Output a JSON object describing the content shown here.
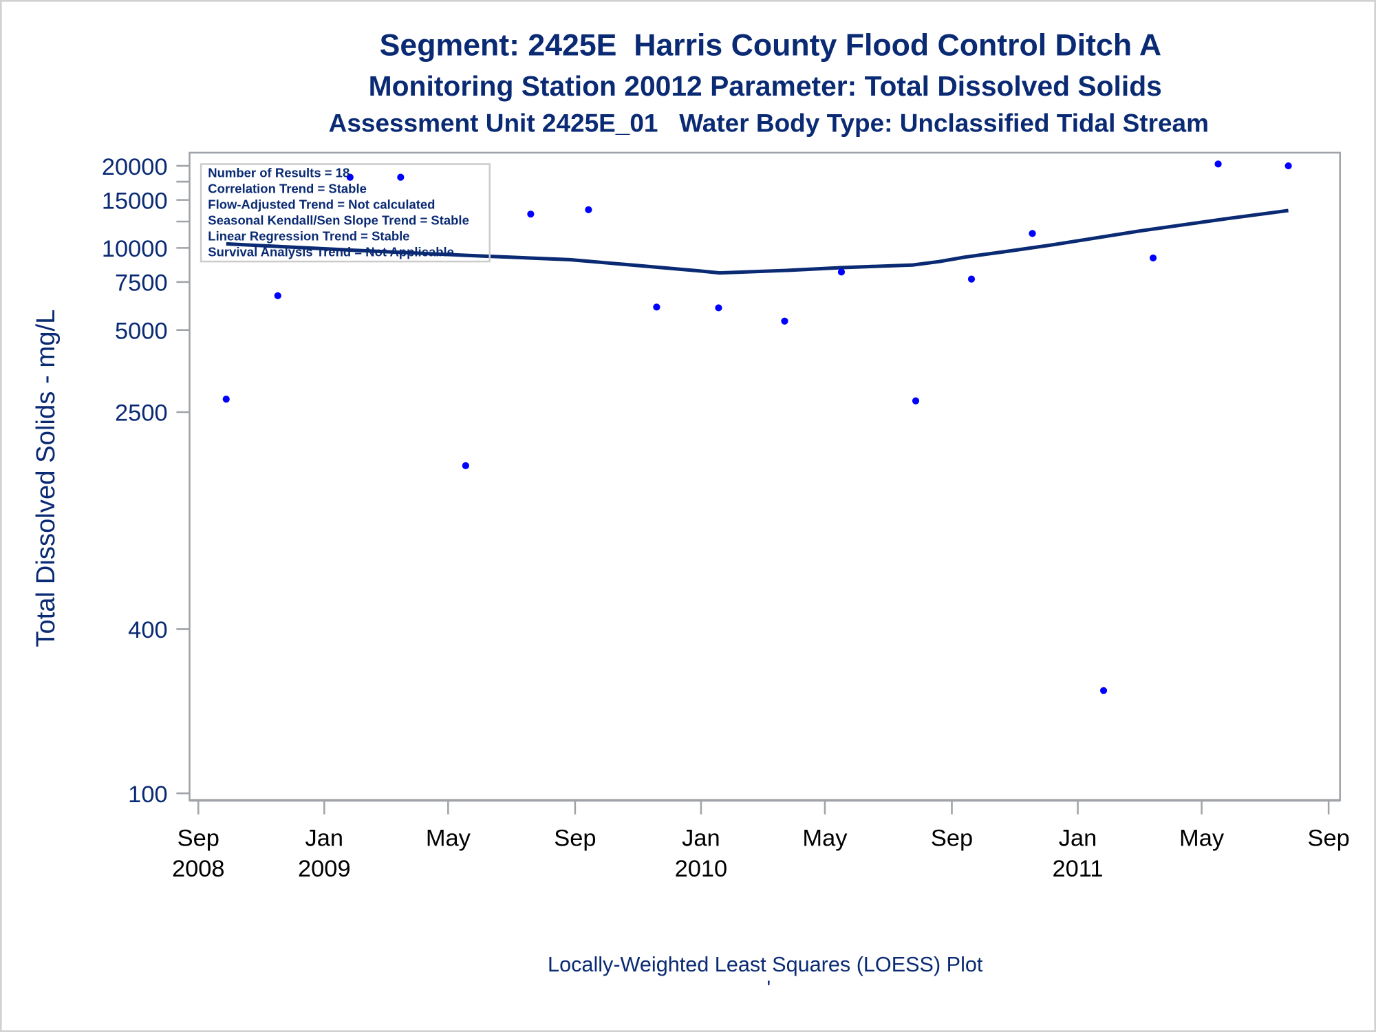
{
  "chart_data": {
    "type": "scatter",
    "title": "Segment: 2425E  Harris County Flood Control Ditch A",
    "subtitle": "Monitoring Station 20012 Parameter: Total Dissolved Solids",
    "subtitle2": "Assessment Unit 2425E_01   Water Body Type: Unclassified Tidal Stream",
    "xlabel": "",
    "ylabel": "Total Dissolved Solids - mg/L",
    "footnote": "Locally-Weighted Least Squares (LOESS) Plot",
    "footnote_mark": "'",
    "yscale": "log",
    "ylim": [
      100,
      20000
    ],
    "xlim": [
      "2008-09-01",
      "2011-09-01"
    ],
    "yticks": [
      {
        "value": 100,
        "label": "100"
      },
      {
        "value": 400,
        "label": "400"
      },
      {
        "value": 2500,
        "label": "2500"
      },
      {
        "value": 5000,
        "label": "5000"
      },
      {
        "value": 7500,
        "label": "7500"
      },
      {
        "value": 10000,
        "label": "10000"
      },
      {
        "value": 12500,
        "label": ""
      },
      {
        "value": 15000,
        "label": "15000"
      },
      {
        "value": 17500,
        "label": ""
      },
      {
        "value": 20000,
        "label": "20000"
      }
    ],
    "xticks": [
      {
        "date": "2008-09-01",
        "label": "Sep",
        "year": "2008"
      },
      {
        "date": "2009-01-01",
        "label": "Jan",
        "year": "2009"
      },
      {
        "date": "2009-05-01",
        "label": "May",
        "year": ""
      },
      {
        "date": "2009-09-01",
        "label": "Sep",
        "year": ""
      },
      {
        "date": "2010-01-01",
        "label": "Jan",
        "year": "2010"
      },
      {
        "date": "2010-05-01",
        "label": "May",
        "year": ""
      },
      {
        "date": "2010-09-01",
        "label": "Sep",
        "year": ""
      },
      {
        "date": "2011-01-01",
        "label": "Jan",
        "year": "2011"
      },
      {
        "date": "2011-05-01",
        "label": "May",
        "year": ""
      },
      {
        "date": "2011-09-01",
        "label": "Sep",
        "year": ""
      }
    ],
    "series": [
      {
        "name": "Observations",
        "kind": "scatter",
        "color": "#0000ff",
        "points": [
          {
            "date": "2008-09-28",
            "value": 2790
          },
          {
            "date": "2008-11-17",
            "value": 6680
          },
          {
            "date": "2009-01-26",
            "value": 18170
          },
          {
            "date": "2009-03-16",
            "value": 18170
          },
          {
            "date": "2009-05-18",
            "value": 1590
          },
          {
            "date": "2009-07-20",
            "value": 13310
          },
          {
            "date": "2009-09-14",
            "value": 13810
          },
          {
            "date": "2009-11-19",
            "value": 6070
          },
          {
            "date": "2010-01-18",
            "value": 6030
          },
          {
            "date": "2010-03-23",
            "value": 5390
          },
          {
            "date": "2010-05-17",
            "value": 8160
          },
          {
            "date": "2010-07-28",
            "value": 2750
          },
          {
            "date": "2010-09-20",
            "value": 7690
          },
          {
            "date": "2010-11-18",
            "value": 11300
          },
          {
            "date": "2011-01-26",
            "value": 238
          },
          {
            "date": "2011-03-15",
            "value": 9190
          },
          {
            "date": "2011-05-17",
            "value": 20320
          },
          {
            "date": "2011-07-24",
            "value": 20000
          }
        ]
      },
      {
        "name": "LOESS",
        "kind": "line",
        "color": "#0a2a73",
        "points": [
          {
            "date": "2008-09-28",
            "value": 10350
          },
          {
            "date": "2009-01-27",
            "value": 9820
          },
          {
            "date": "2009-05-17",
            "value": 9400
          },
          {
            "date": "2009-08-27",
            "value": 9060
          },
          {
            "date": "2009-10-26",
            "value": 8660
          },
          {
            "date": "2010-01-02",
            "value": 8220
          },
          {
            "date": "2010-01-19",
            "value": 8100
          },
          {
            "date": "2010-03-28",
            "value": 8280
          },
          {
            "date": "2010-05-18",
            "value": 8470
          },
          {
            "date": "2010-07-25",
            "value": 8660
          },
          {
            "date": "2010-08-20",
            "value": 8920
          },
          {
            "date": "2010-09-14",
            "value": 9260
          },
          {
            "date": "2010-10-27",
            "value": 9750
          },
          {
            "date": "2010-12-08",
            "value": 10270
          },
          {
            "date": "2011-01-20",
            "value": 10900
          },
          {
            "date": "2011-03-03",
            "value": 11560
          },
          {
            "date": "2011-04-15",
            "value": 12180
          },
          {
            "date": "2011-05-27",
            "value": 12830
          },
          {
            "date": "2011-07-24",
            "value": 13720
          }
        ]
      }
    ],
    "legend_position": "top-left",
    "info_box": [
      "Number of Results = 18",
      "Correlation Trend = Stable",
      "Flow-Adjusted Trend = Not calculated",
      "Seasonal Kendall/Sen Slope Trend = Stable",
      "Linear Regression Trend = Stable",
      "Survival Analysis Trend = Not Applicable"
    ]
  }
}
